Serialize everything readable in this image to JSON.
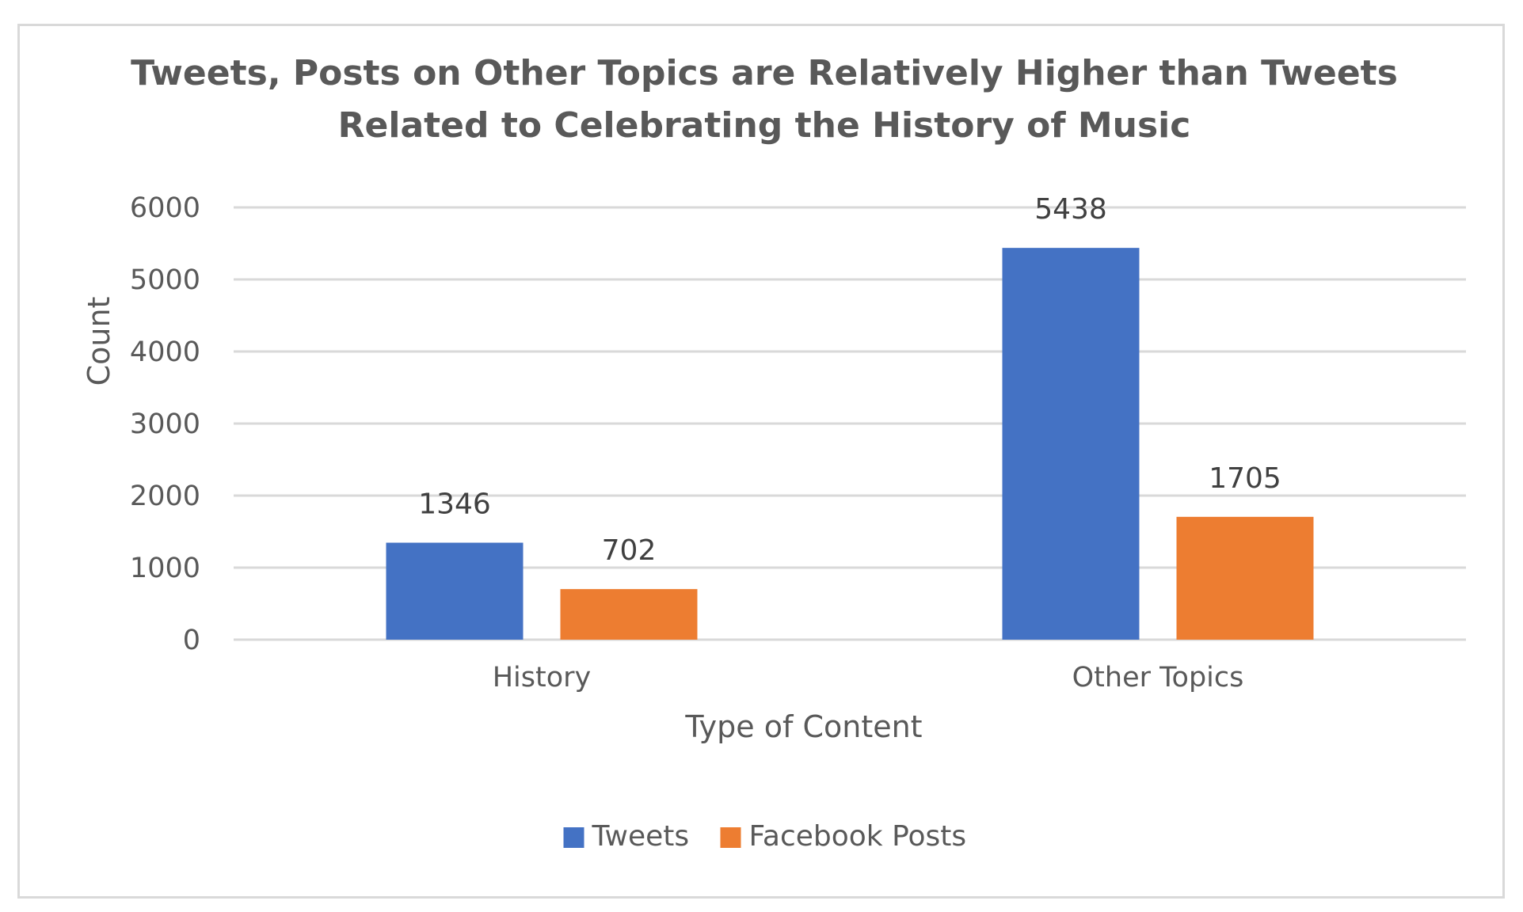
{
  "chart_data": {
    "type": "bar",
    "title_lines": [
      "Tweets, Posts on Other Topics are Relatively Higher than Tweets",
      "Related to Celebrating the History of Music"
    ],
    "xlabel": "Type of Content",
    "ylabel": "Count",
    "categories": [
      "History",
      "Other Topics"
    ],
    "series": [
      {
        "name": "Tweets",
        "values": [
          1346,
          5438
        ],
        "color": "#4472c4"
      },
      {
        "name": "Facebook Posts",
        "values": [
          702,
          1705
        ],
        "color": "#ed7d31"
      }
    ],
    "ylim": [
      0,
      6000
    ],
    "yticks": [
      0,
      1000,
      2000,
      3000,
      4000,
      5000,
      6000
    ],
    "grid": true,
    "legend_position": "bottom",
    "data_labels": true
  }
}
